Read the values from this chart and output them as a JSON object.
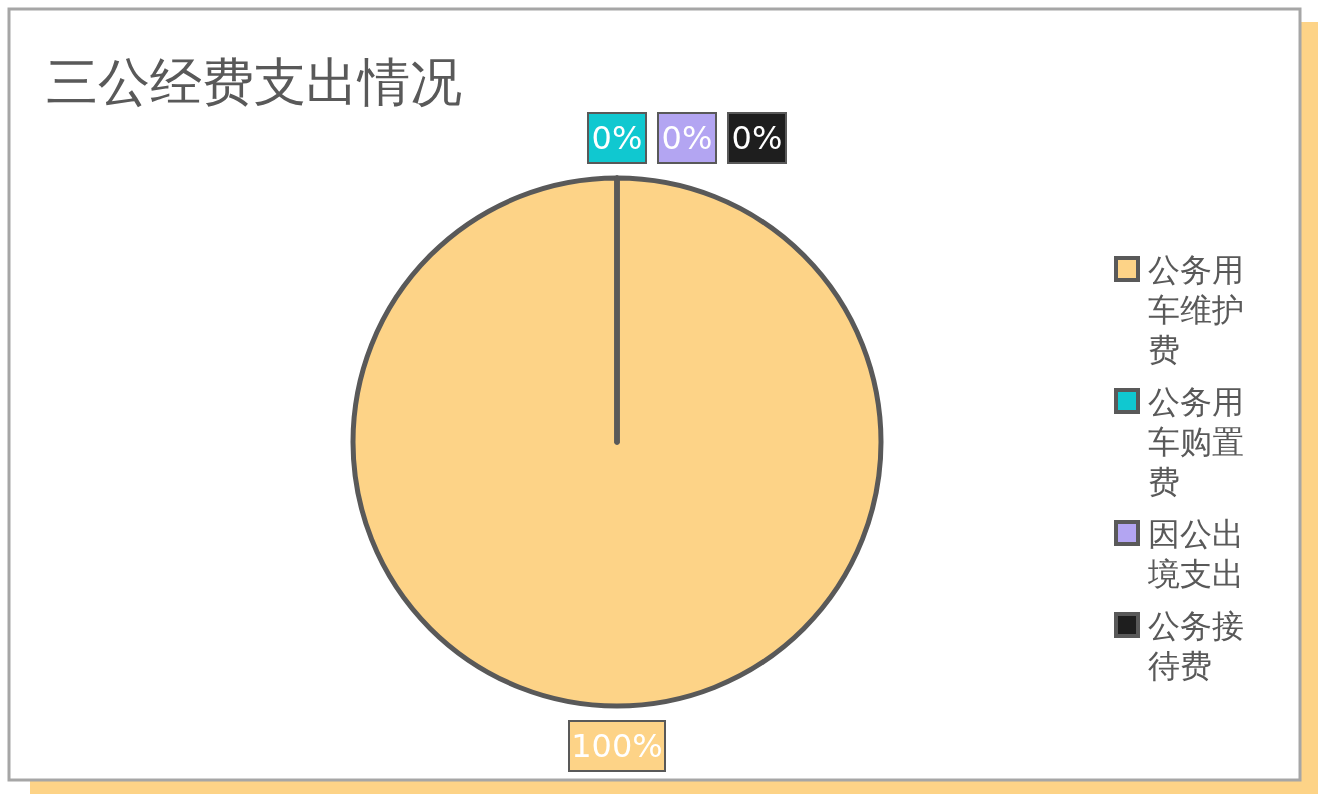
{
  "chart_data": {
    "type": "pie",
    "title": "三公经费支出情况",
    "categories": [
      "公务用车维护费",
      "公务用车购置费",
      "因公出境支出",
      "公务接待费"
    ],
    "values": [
      100,
      0,
      0,
      0
    ],
    "colors": [
      "#fdd387",
      "#10c8d0",
      "#b3a5f2",
      "#1e1e1e"
    ],
    "value_labels": [
      "100%",
      "0%",
      "0%",
      "0%"
    ],
    "legend": "right"
  }
}
